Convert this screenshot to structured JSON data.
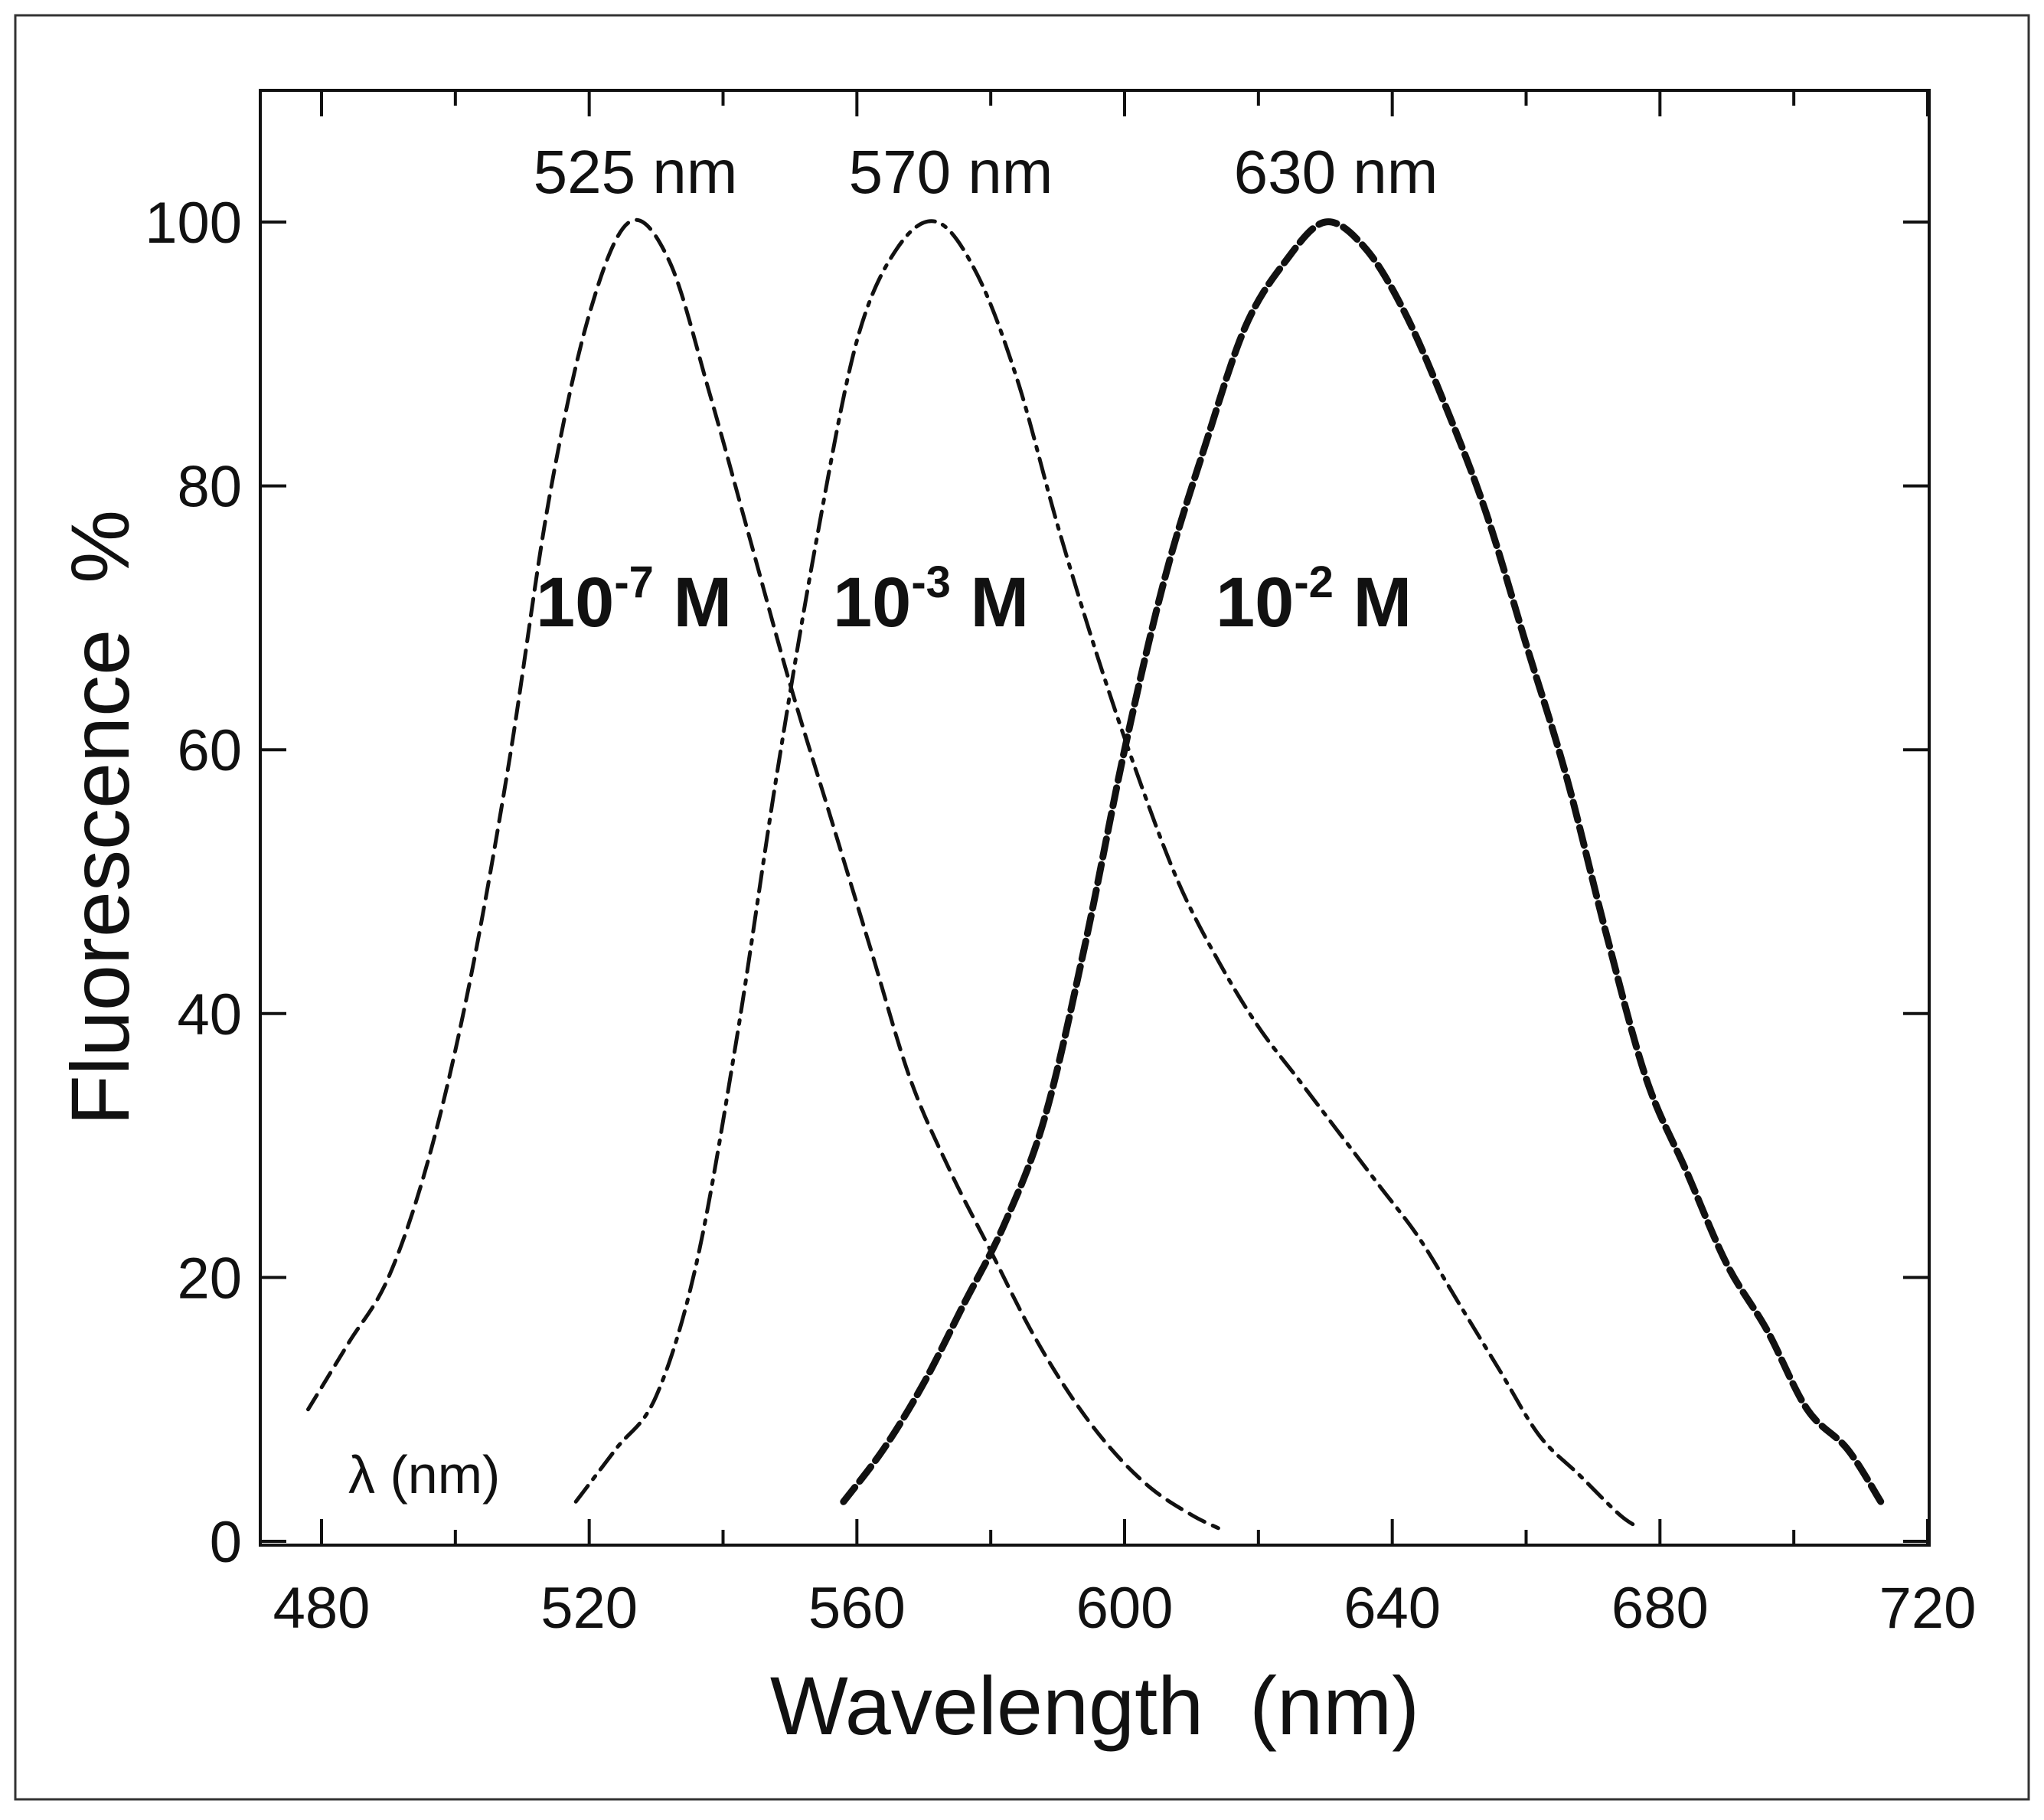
{
  "chart_data": {
    "type": "line",
    "title": "",
    "xlabel": "Wavelength  (nm)",
    "ylabel": "Fluorescence  %",
    "xlim": [
      470,
      720
    ],
    "ylim": [
      0,
      110
    ],
    "xticks": [
      480,
      520,
      560,
      600,
      640,
      680,
      720
    ],
    "yticks": [
      0,
      20,
      40,
      60,
      80,
      100
    ],
    "grid": false,
    "corner_label": "λ (nm)",
    "series": [
      {
        "name": "10-7 M",
        "conc_base": "10",
        "conc_exp": "-7",
        "conc_unit": "M",
        "peak_label": "525 nm",
        "style": "dashed",
        "x": [
          478,
          484,
          490,
          496,
          502,
          508,
          514,
          520,
          526,
          532,
          538,
          544,
          550,
          556,
          562,
          568,
          574,
          580,
          586,
          592,
          598,
          604,
          610,
          614
        ],
        "y": [
          10,
          15,
          20,
          29,
          42,
          59,
          79,
          93,
          100,
          97,
          87,
          76,
          65,
          55,
          45,
          35,
          28,
          22,
          16,
          11,
          7,
          4,
          2,
          1
        ]
      },
      {
        "name": "10-3 M",
        "conc_base": "10",
        "conc_exp": "-3",
        "conc_unit": "M",
        "peak_label": "570 nm",
        "style": "dashdot",
        "x": [
          518,
          524,
          530,
          536,
          542,
          548,
          554,
          560,
          566,
          572,
          578,
          584,
          590,
          596,
          602,
          608,
          614,
          620,
          626,
          632,
          638,
          644,
          650,
          656,
          662,
          668,
          674,
          677
        ],
        "y": [
          3,
          7,
          11,
          21,
          38,
          58,
          76,
          91,
          98,
          100,
          96,
          88,
          77,
          67,
          58,
          50,
          44,
          39,
          35,
          31,
          27,
          23,
          18,
          13,
          8,
          5,
          2,
          1
        ]
      },
      {
        "name": "10-2 M",
        "conc_base": "10",
        "conc_exp": "-2",
        "conc_unit": "M",
        "peak_label": "630 nm",
        "style": "bold-dashed",
        "x": [
          558,
          564,
          570,
          576,
          582,
          588,
          594,
          600,
          606,
          612,
          618,
          624,
          630,
          636,
          642,
          648,
          654,
          660,
          666,
          672,
          678,
          684,
          690,
          696,
          702,
          708,
          713
        ],
        "y": [
          3,
          7,
          12,
          18,
          24,
          32,
          45,
          60,
          73,
          83,
          92,
          97,
          100,
          98,
          93,
          86,
          78,
          68,
          58,
          46,
          35,
          28,
          21,
          16,
          10,
          7,
          3
        ]
      }
    ]
  }
}
